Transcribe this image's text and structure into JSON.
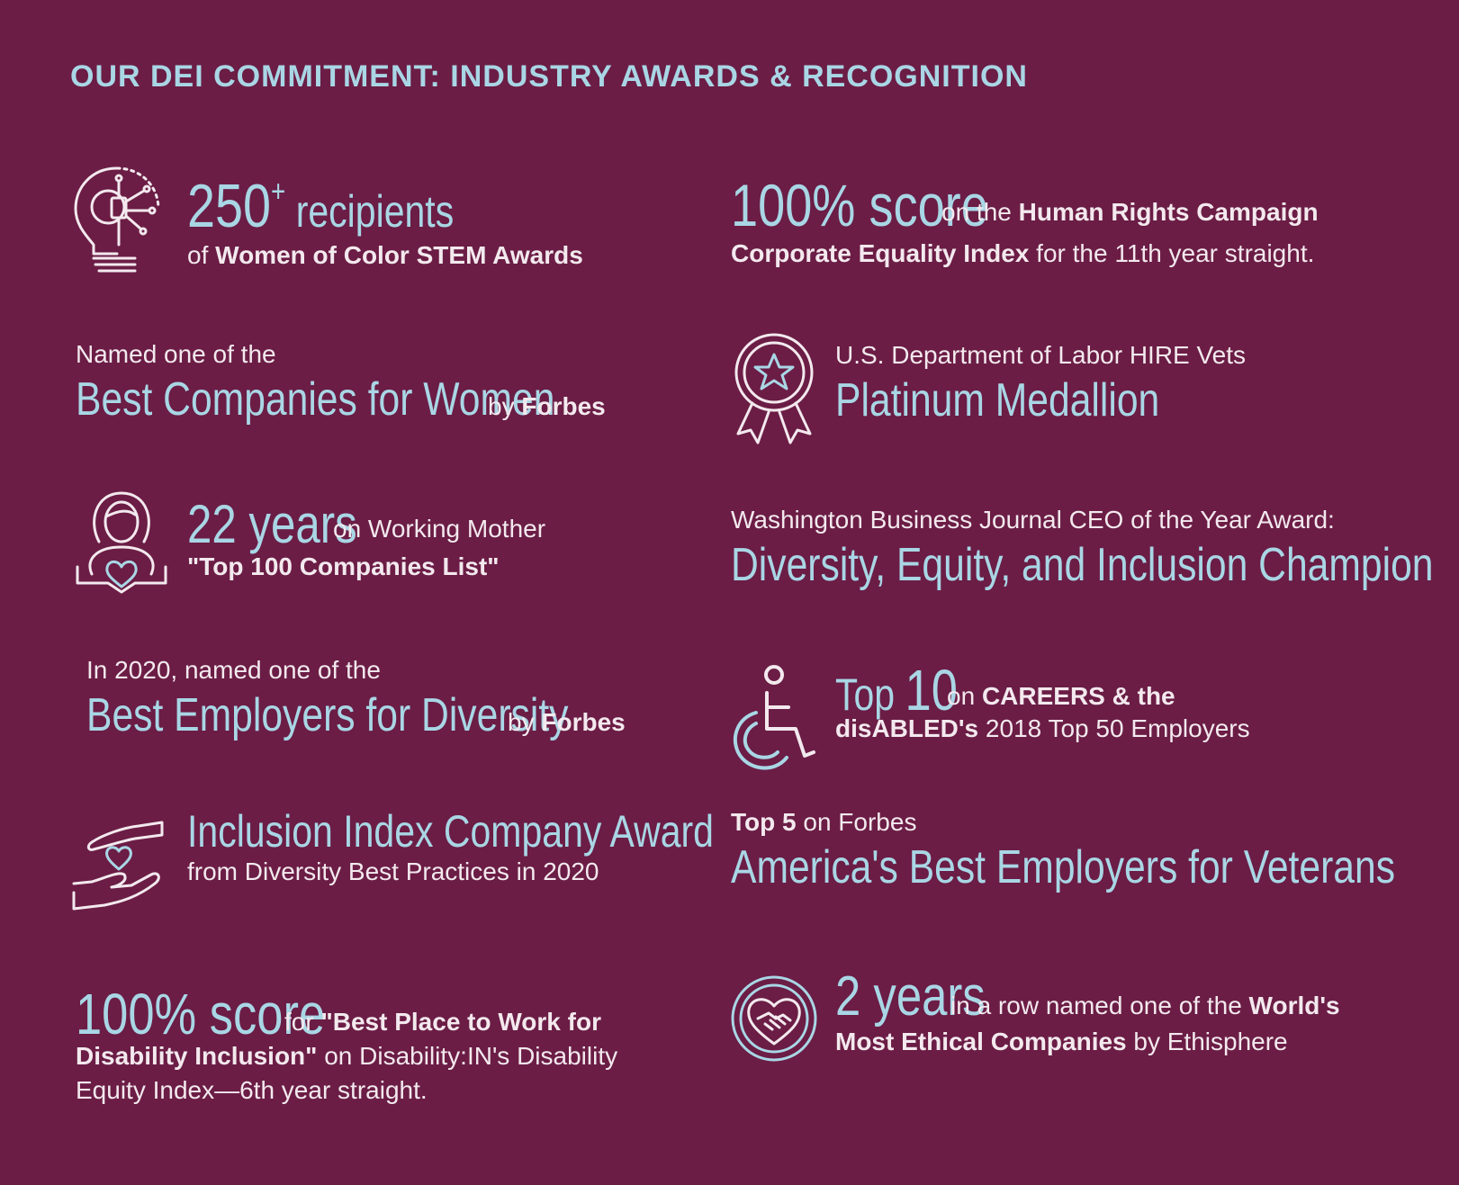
{
  "title": "OUR DEI COMMITMENT: INDUSTRY AWARDS & RECOGNITION",
  "colors": {
    "background": "#6b1d45",
    "accent": "#a9d6e5",
    "text": "#f3e9ee"
  },
  "left": {
    "stem": {
      "icon": "lightbulb-circuit-icon",
      "big": "250",
      "plus": "+",
      "big2": " recipients",
      "pre": "of ",
      "bold": "Women of Color STEM Awards"
    },
    "forbes_women": {
      "line1": "Named one of the",
      "big": "Best Companies for Women",
      "by": " by ",
      "bold": "Forbes"
    },
    "mother": {
      "icon": "mother-child-heart-icon",
      "big": "22 years",
      "rest": " on Working Mother",
      "bold": "\"Top 100 Companies List\""
    },
    "diversity": {
      "line1": "In 2020, named one of the",
      "big": "Best Employers for Diversity",
      "by": " by ",
      "bold": "Forbes"
    },
    "inclusion": {
      "icon": "hands-heart-icon",
      "big": "Inclusion Index Company Award",
      "line2": "from Diversity Best Practices in 2020"
    },
    "disability": {
      "big": "100% score",
      "for": " for ",
      "bold1": "\"Best Place to Work for",
      "bold2": "Disability Inclusion\"",
      "rest2": " on Disability:IN's Disability",
      "line3": "Equity Index—6th year straight."
    }
  },
  "right": {
    "hrc": {
      "big": "100% score",
      "on": " on the ",
      "bold1": "Human Rights Campaign",
      "bold2": "Corporate Equality Index",
      "rest2": " for the 11th year straight."
    },
    "vets": {
      "icon": "medal-star-icon",
      "line1": "U.S. Department of Labor HIRE Vets",
      "big": "Platinum Medallion"
    },
    "ceo": {
      "line1": "Washington Business Journal CEO of the Year Award:",
      "big": "Diversity, Equity, and Inclusion Champion"
    },
    "careers": {
      "icon": "wheelchair-icon",
      "big1": "Top ",
      "big2": "10",
      "on": " on ",
      "bold1": "CAREERS & the",
      "bold2": "disABLED's",
      "rest2": "  2018 Top 50 Employers"
    },
    "veterans": {
      "bold": "Top 5",
      "rest": " on Forbes",
      "big": "America's Best Employers for Veterans"
    },
    "ethisphere": {
      "icon": "heart-handshake-icon",
      "big": "2 years",
      "rest": " in a row named one of the ",
      "bold1": "World's",
      "bold2": "Most Ethical Companies",
      "rest2": " by Ethisphere"
    }
  }
}
